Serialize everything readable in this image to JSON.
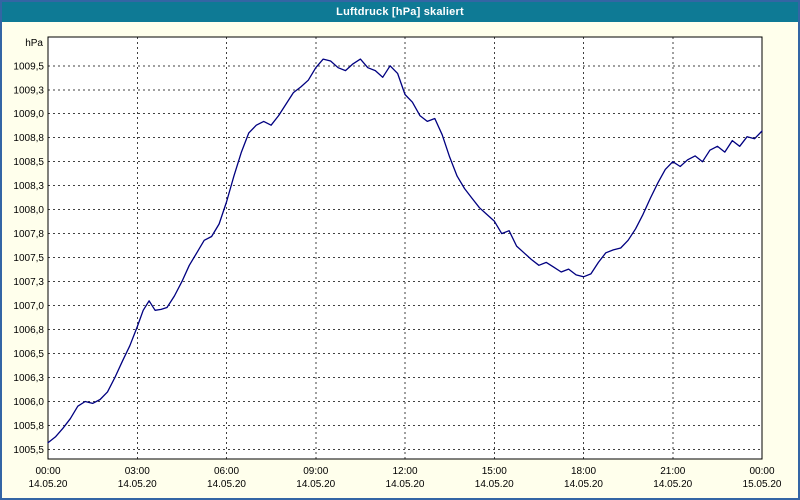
{
  "window": {
    "title": "Luftdruck [hPa] skaliert"
  },
  "colors": {
    "titlebar": "#0E7A95",
    "window_border": "#3465A4",
    "chart_background": "#FFFFEC",
    "plot_background": "#FFFFFF",
    "grid": "#404040",
    "line": "#000080",
    "title_text": "#FFFFFF"
  },
  "chart_data": {
    "type": "line",
    "title": "Luftdruck [hPa] skaliert",
    "ylabel": "hPa",
    "xlabel": "",
    "grid": true,
    "legend": "none",
    "ylim": [
      1005.4,
      1009.8
    ],
    "xlim_hours": [
      0,
      24
    ],
    "yticks": [
      {
        "v": 1009.5,
        "label": "1009,5"
      },
      {
        "v": 1009.25,
        "label": "1009,3"
      },
      {
        "v": 1009.0,
        "label": "1009,0"
      },
      {
        "v": 1008.75,
        "label": "1008,8"
      },
      {
        "v": 1008.5,
        "label": "1008,5"
      },
      {
        "v": 1008.25,
        "label": "1008,3"
      },
      {
        "v": 1008.0,
        "label": "1008,0"
      },
      {
        "v": 1007.75,
        "label": "1007,8"
      },
      {
        "v": 1007.5,
        "label": "1007,5"
      },
      {
        "v": 1007.25,
        "label": "1007,3"
      },
      {
        "v": 1007.0,
        "label": "1007,0"
      },
      {
        "v": 1006.75,
        "label": "1006,8"
      },
      {
        "v": 1006.5,
        "label": "1006,5"
      },
      {
        "v": 1006.25,
        "label": "1006,3"
      },
      {
        "v": 1006.0,
        "label": "1006,0"
      },
      {
        "v": 1005.75,
        "label": "1005,8"
      },
      {
        "v": 1005.5,
        "label": "1005,5"
      }
    ],
    "xticks": [
      {
        "h": 0,
        "time": "00:00",
        "date": "14.05.20"
      },
      {
        "h": 3,
        "time": "03:00",
        "date": "14.05.20"
      },
      {
        "h": 6,
        "time": "06:00",
        "date": "14.05.20"
      },
      {
        "h": 9,
        "time": "09:00",
        "date": "14.05.20"
      },
      {
        "h": 12,
        "time": "12:00",
        "date": "14.05.20"
      },
      {
        "h": 15,
        "time": "15:00",
        "date": "14.05.20"
      },
      {
        "h": 18,
        "time": "18:00",
        "date": "14.05.20"
      },
      {
        "h": 21,
        "time": "21:00",
        "date": "14.05.20"
      },
      {
        "h": 24,
        "time": "00:00",
        "date": "15.05.20"
      }
    ],
    "series": [
      {
        "name": "Luftdruck",
        "color": "#000080",
        "points": [
          [
            0,
            1005.57
          ],
          [
            0.25,
            1005.63
          ],
          [
            0.5,
            1005.72
          ],
          [
            0.75,
            1005.82
          ],
          [
            1,
            1005.95
          ],
          [
            1.25,
            1006.0
          ],
          [
            1.5,
            1005.98
          ],
          [
            1.75,
            1006.02
          ],
          [
            2,
            1006.1
          ],
          [
            2.25,
            1006.25
          ],
          [
            2.5,
            1006.42
          ],
          [
            2.75,
            1006.58
          ],
          [
            3,
            1006.78
          ],
          [
            3.2,
            1006.95
          ],
          [
            3.4,
            1007.05
          ],
          [
            3.6,
            1006.95
          ],
          [
            3.8,
            1006.96
          ],
          [
            4,
            1006.98
          ],
          [
            4.25,
            1007.1
          ],
          [
            4.5,
            1007.25
          ],
          [
            4.75,
            1007.42
          ],
          [
            5,
            1007.55
          ],
          [
            5.25,
            1007.68
          ],
          [
            5.5,
            1007.72
          ],
          [
            5.75,
            1007.85
          ],
          [
            6,
            1008.08
          ],
          [
            6.25,
            1008.35
          ],
          [
            6.5,
            1008.6
          ],
          [
            6.75,
            1008.8
          ],
          [
            7,
            1008.88
          ],
          [
            7.25,
            1008.92
          ],
          [
            7.5,
            1008.88
          ],
          [
            7.75,
            1008.98
          ],
          [
            8,
            1009.1
          ],
          [
            8.25,
            1009.22
          ],
          [
            8.5,
            1009.28
          ],
          [
            8.75,
            1009.35
          ],
          [
            9,
            1009.48
          ],
          [
            9.25,
            1009.57
          ],
          [
            9.5,
            1009.55
          ],
          [
            9.75,
            1009.48
          ],
          [
            10,
            1009.45
          ],
          [
            10.25,
            1009.52
          ],
          [
            10.5,
            1009.57
          ],
          [
            10.75,
            1009.48
          ],
          [
            11,
            1009.45
          ],
          [
            11.25,
            1009.38
          ],
          [
            11.5,
            1009.5
          ],
          [
            11.75,
            1009.42
          ],
          [
            12,
            1009.2
          ],
          [
            12.25,
            1009.12
          ],
          [
            12.5,
            1008.98
          ],
          [
            12.75,
            1008.92
          ],
          [
            13,
            1008.95
          ],
          [
            13.25,
            1008.78
          ],
          [
            13.5,
            1008.55
          ],
          [
            13.75,
            1008.35
          ],
          [
            14,
            1008.22
          ],
          [
            14.25,
            1008.12
          ],
          [
            14.5,
            1008.02
          ],
          [
            14.75,
            1007.95
          ],
          [
            15,
            1007.88
          ],
          [
            15.25,
            1007.75
          ],
          [
            15.5,
            1007.78
          ],
          [
            15.75,
            1007.62
          ],
          [
            16,
            1007.55
          ],
          [
            16.25,
            1007.48
          ],
          [
            16.5,
            1007.42
          ],
          [
            16.75,
            1007.45
          ],
          [
            17,
            1007.4
          ],
          [
            17.25,
            1007.35
          ],
          [
            17.5,
            1007.38
          ],
          [
            17.75,
            1007.32
          ],
          [
            18,
            1007.3
          ],
          [
            18.25,
            1007.33
          ],
          [
            18.5,
            1007.45
          ],
          [
            18.75,
            1007.55
          ],
          [
            19,
            1007.58
          ],
          [
            19.25,
            1007.6
          ],
          [
            19.5,
            1007.68
          ],
          [
            19.75,
            1007.8
          ],
          [
            20,
            1007.95
          ],
          [
            20.25,
            1008.12
          ],
          [
            20.5,
            1008.28
          ],
          [
            20.75,
            1008.42
          ],
          [
            21,
            1008.5
          ],
          [
            21.25,
            1008.45
          ],
          [
            21.5,
            1008.52
          ],
          [
            21.75,
            1008.56
          ],
          [
            22,
            1008.5
          ],
          [
            22.25,
            1008.62
          ],
          [
            22.5,
            1008.66
          ],
          [
            22.75,
            1008.6
          ],
          [
            23,
            1008.72
          ],
          [
            23.25,
            1008.66
          ],
          [
            23.5,
            1008.76
          ],
          [
            23.75,
            1008.74
          ],
          [
            24,
            1008.82
          ]
        ]
      }
    ]
  }
}
